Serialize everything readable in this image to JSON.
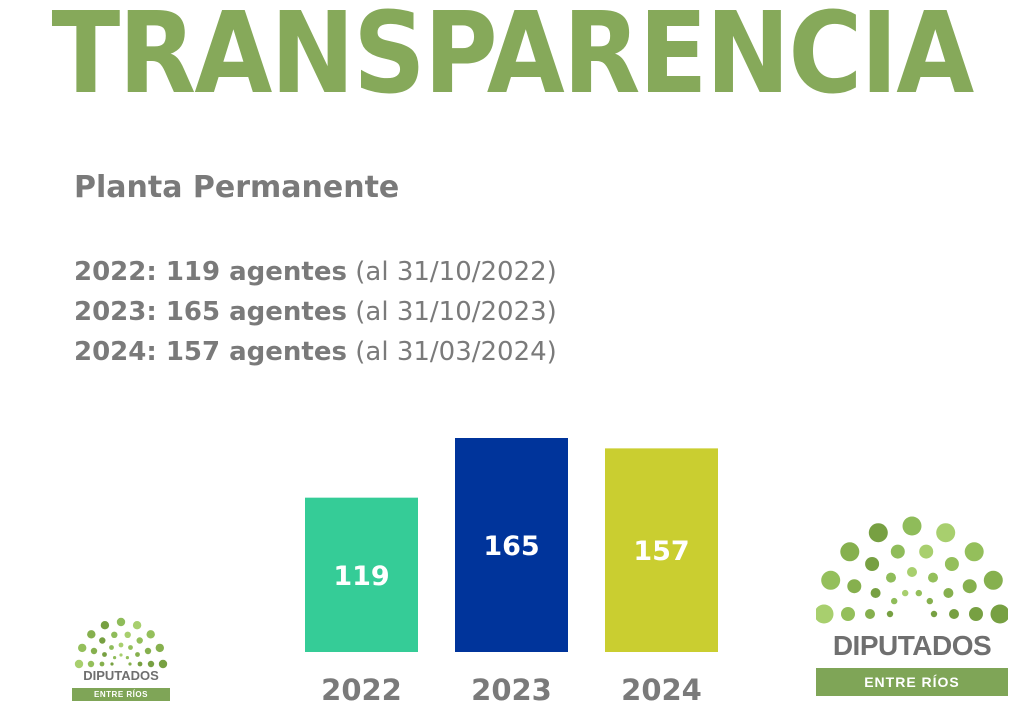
{
  "header": {
    "title": "TRANSPARENCIA"
  },
  "subtitle": "Planta Permanente",
  "stats": [
    {
      "strong": "2022: 119 agentes",
      "note": " (al 31/10/2022)"
    },
    {
      "strong": "2023: 165 agentes",
      "note": " (al 31/10/2023)"
    },
    {
      "strong": "2024: 157 agentes",
      "note": " (al 31/03/2024)"
    }
  ],
  "logo": {
    "name": "DIPUTADOS",
    "province": "ENTRE RÍOS"
  },
  "colors": {
    "title": "#86a95a",
    "text": "#7a7a7a",
    "logo_text": "#6f6f6f",
    "logo_band": "#7fa557",
    "bar_2022": "#35cc97",
    "bar_2023": "#00349b",
    "bar_2024": "#cace30",
    "bar_label": "#ffffff",
    "category_label": "#7a7a7a"
  },
  "chart_data": {
    "type": "bar",
    "categories": [
      "2022",
      "2023",
      "2024"
    ],
    "values": [
      119,
      165,
      157
    ],
    "value_labels": [
      "119",
      "165",
      "157"
    ],
    "bar_colors": [
      "#35cc97",
      "#00349b",
      "#cace30"
    ],
    "title": "",
    "xlabel": "",
    "ylabel": "",
    "ylim": [
      0,
      165
    ],
    "grid": false,
    "legend": "none"
  }
}
